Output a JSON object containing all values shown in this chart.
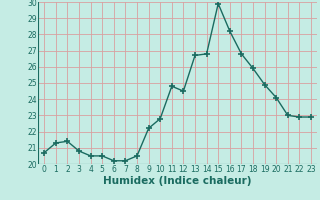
{
  "x": [
    0,
    1,
    2,
    3,
    4,
    5,
    6,
    7,
    8,
    9,
    10,
    11,
    12,
    13,
    14,
    15,
    16,
    17,
    18,
    19,
    20,
    21,
    22,
    23
  ],
  "y": [
    20.7,
    21.3,
    21.4,
    20.8,
    20.5,
    20.5,
    20.2,
    20.2,
    20.5,
    22.2,
    22.8,
    24.8,
    24.5,
    26.7,
    26.8,
    29.9,
    28.2,
    26.8,
    25.9,
    24.9,
    24.1,
    23.0,
    22.9,
    22.9
  ],
  "line_color": "#1a6b60",
  "marker": "+",
  "markersize": 4,
  "markeredgewidth": 1.2,
  "linewidth": 1.0,
  "xlabel": "Humidex (Indice chaleur)",
  "xlim": [
    -0.5,
    23.5
  ],
  "ylim": [
    20,
    30
  ],
  "yticks": [
    20,
    21,
    22,
    23,
    24,
    25,
    26,
    27,
    28,
    29,
    30
  ],
  "xticks": [
    0,
    1,
    2,
    3,
    4,
    5,
    6,
    7,
    8,
    9,
    10,
    11,
    12,
    13,
    14,
    15,
    16,
    17,
    18,
    19,
    20,
    21,
    22,
    23
  ],
  "bg_color": "#c5ece4",
  "grid_color": "#d9a0a0",
  "tick_label_fontsize": 5.5,
  "xlabel_fontsize": 7.5,
  "xlabel_fontweight": "bold",
  "xlabel_color": "#1a6b60"
}
